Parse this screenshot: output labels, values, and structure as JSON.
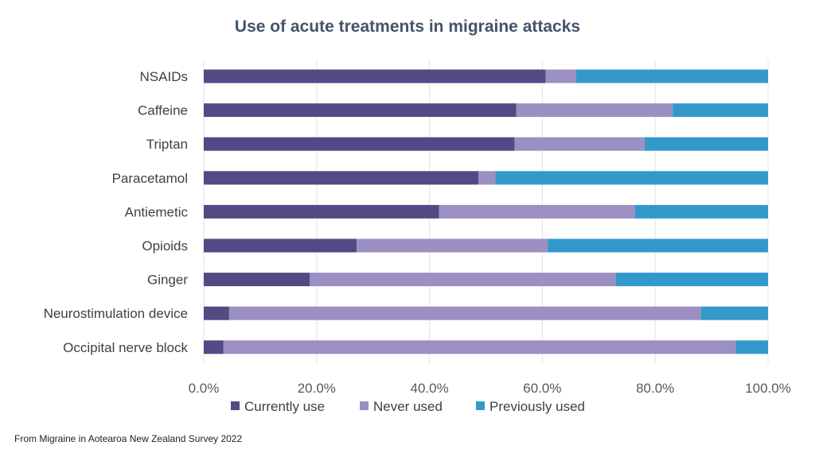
{
  "chart_data": {
    "type": "bar",
    "orientation": "horizontal",
    "stacked": true,
    "title": "Use of acute treatments in migraine attacks",
    "categories": [
      "NSAIDs",
      "Caffeine",
      "Triptan",
      "Paracetamol",
      "Antiemetic",
      "Opioids",
      "Ginger",
      "Neurostimulation device",
      "Occipital nerve block"
    ],
    "series": [
      {
        "name": "Currently use",
        "color": "#524a84",
        "values": [
          60.6,
          55.4,
          55.1,
          48.7,
          41.7,
          27.1,
          18.8,
          4.5,
          3.5
        ]
      },
      {
        "name": "Never used",
        "color": "#9b8fc4",
        "values": [
          5.4,
          27.7,
          23.0,
          3.0,
          34.7,
          33.9,
          54.2,
          83.6,
          90.8
        ]
      },
      {
        "name": "Previously used",
        "color": "#3399cc",
        "values": [
          34.0,
          16.9,
          21.9,
          48.3,
          23.6,
          39.0,
          27.0,
          11.9,
          5.7
        ]
      }
    ],
    "xlim": [
      0,
      100
    ],
    "xticks": [
      "0.0%",
      "20.0%",
      "40.0%",
      "60.0%",
      "80.0%",
      "100.0%"
    ],
    "grid": true,
    "legend": "bottom",
    "xlabel": "",
    "ylabel": ""
  },
  "source": "From Migraine in Aotearoa New Zealand Survey 2022"
}
